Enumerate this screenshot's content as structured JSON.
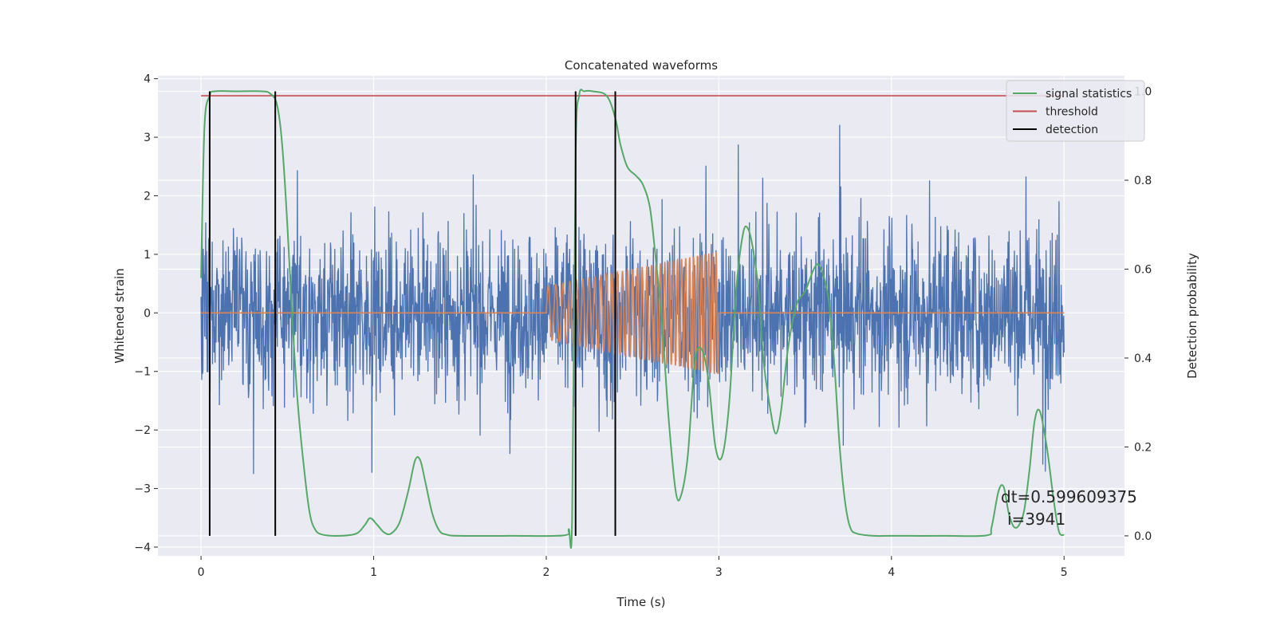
{
  "chart_data": {
    "type": "line",
    "title": "Concatenated waveforms",
    "xlabel": "Time (s)",
    "ylabel": "Whitened strain",
    "y2label": "Detection probability",
    "xlim": [
      -0.25,
      5.35
    ],
    "ylim": [
      -4.15,
      4.05
    ],
    "y2lim": [
      -0.045,
      1.035
    ],
    "xticks": [
      0,
      1,
      2,
      3,
      4,
      5
    ],
    "yticks": [
      -4,
      -3,
      -2,
      -1,
      0,
      1,
      2,
      3,
      4
    ],
    "y2ticks": [
      0.0,
      0.2,
      0.4,
      0.6,
      0.8,
      1.0
    ],
    "ytick_labels": [
      "−4",
      "−3",
      "−2",
      "−1",
      "0",
      "1",
      "2",
      "3",
      "4"
    ],
    "y2tick_labels": [
      "0.0",
      "0.2",
      "0.4",
      "0.6",
      "0.8",
      "1.0"
    ],
    "grid": true,
    "legend_position": "top-right",
    "colors": {
      "background": "#eaeaf2",
      "grid": "#ffffff",
      "strain": "#4c72b0",
      "waveform": "#dd8452",
      "statistics": "#55a868",
      "threshold": "#c44e52",
      "detection": "#000000"
    },
    "legend": [
      "signal statistics",
      "threshold",
      "detection"
    ],
    "annotations": [
      "dt=0.599609375",
      "i=3941"
    ],
    "strain_noise": {
      "t_start": 0,
      "t_end": 5,
      "core_amplitude": 0.8,
      "peak_amplitude": 3.65
    },
    "injected_waveform": {
      "t_start": 2.0,
      "t_end": 3.0,
      "offset": 0,
      "amplitude_start": 0.45,
      "amplitude_end": 1.05,
      "freq_start_hz": 22,
      "freq_end_hz": 48
    },
    "threshold": {
      "value": 0.99,
      "t_start": 0,
      "t_end": 5
    },
    "detections": [
      0.05,
      0.43,
      2.17,
      2.4
    ],
    "signal_statistics": {
      "x": [
        0.0,
        0.02,
        0.05,
        0.08,
        0.2,
        0.35,
        0.4,
        0.44,
        0.47,
        0.5,
        0.53,
        0.56,
        0.6,
        0.63,
        0.66,
        0.7,
        0.8,
        0.9,
        0.95,
        0.98,
        1.02,
        1.06,
        1.1,
        1.15,
        1.2,
        1.24,
        1.27,
        1.3,
        1.34,
        1.38,
        1.42,
        1.5,
        1.8,
        2.1,
        2.13,
        2.15,
        2.17,
        2.19,
        2.22,
        2.27,
        2.35,
        2.4,
        2.43,
        2.47,
        2.52,
        2.56,
        2.6,
        2.63,
        2.67,
        2.71,
        2.75,
        2.78,
        2.82,
        2.86,
        2.9,
        2.94,
        2.98,
        3.02,
        3.06,
        3.1,
        3.14,
        3.17,
        3.2,
        3.23,
        3.26,
        3.3,
        3.33,
        3.36,
        3.4,
        3.45,
        3.5,
        3.55,
        3.58,
        3.61,
        3.64,
        3.67,
        3.7,
        3.73,
        3.76,
        3.8,
        3.9,
        4.0,
        4.3,
        4.55,
        4.58,
        4.62,
        4.65,
        4.68,
        4.71,
        4.74,
        4.77,
        4.8,
        4.83,
        4.86,
        4.9,
        4.94,
        4.97,
        5.0
      ],
      "y": [
        0.58,
        0.92,
        0.99,
        1.0,
        1.0,
        1.0,
        0.995,
        0.97,
        0.88,
        0.7,
        0.48,
        0.3,
        0.14,
        0.05,
        0.015,
        0.003,
        0.0,
        0.005,
        0.025,
        0.04,
        0.025,
        0.008,
        0.005,
        0.03,
        0.1,
        0.17,
        0.17,
        0.12,
        0.05,
        0.012,
        0.003,
        0.0,
        0.0,
        0.001,
        0.015,
        0.04,
        0.85,
        0.99,
        1.0,
        1.0,
        0.99,
        0.94,
        0.88,
        0.83,
        0.81,
        0.79,
        0.74,
        0.64,
        0.48,
        0.26,
        0.1,
        0.09,
        0.18,
        0.39,
        0.42,
        0.35,
        0.2,
        0.18,
        0.3,
        0.55,
        0.68,
        0.69,
        0.64,
        0.55,
        0.39,
        0.28,
        0.23,
        0.28,
        0.42,
        0.52,
        0.55,
        0.6,
        0.61,
        0.58,
        0.52,
        0.38,
        0.2,
        0.08,
        0.02,
        0.005,
        0.0,
        0.0,
        0.0,
        0.001,
        0.02,
        0.1,
        0.11,
        0.05,
        0.02,
        0.025,
        0.06,
        0.15,
        0.26,
        0.28,
        0.2,
        0.08,
        0.01,
        0.002
      ]
    }
  }
}
